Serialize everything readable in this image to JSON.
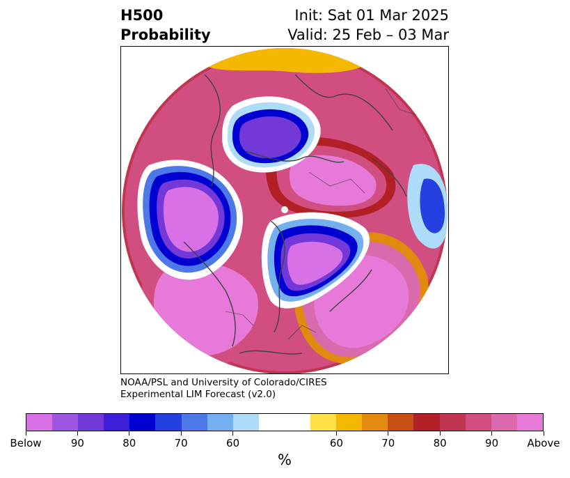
{
  "header": {
    "title_line1": "H500",
    "title_line2": "Probability",
    "init": "Init: Sat 01 Mar 2025",
    "valid": "Valid: 25 Feb – 03 Mar"
  },
  "credit": {
    "line1": "NOAA/PSL and University of Colorado/CIRES",
    "line2": "Experimental LIM Forecast (v2.0)"
  },
  "colorbar": {
    "colors": [
      "#d870e6",
      "#9e55e0",
      "#7238d8",
      "#3d1ed8",
      "#0000d0",
      "#2540e0",
      "#4c78e8",
      "#74b0f0",
      "#aedcf8",
      "#ffffff",
      "#ffffff",
      "#fde047",
      "#f4b800",
      "#e08a10",
      "#c85018",
      "#b02025",
      "#c03550",
      "#d04e80",
      "#d96aae",
      "#e77ad8"
    ],
    "tick_labels": [
      "Below",
      "90",
      "80",
      "70",
      "60",
      "60",
      "70",
      "80",
      "90",
      "Above"
    ],
    "unit_label": "%"
  },
  "map": {
    "projection": "north-polar-stereographic",
    "palette": {
      "above_strong": "#e77ad8",
      "above_mid": "#d04e80",
      "above_low": "#b02025",
      "above_orange": "#e08a10",
      "above_yellow": "#fde047",
      "below_strong": "#d870e6",
      "below_violet": "#7238d8",
      "below_blue": "#0000d0",
      "below_lightblue": "#74b0f0",
      "below_pale": "#aedcf8",
      "coast": "#404040"
    }
  }
}
